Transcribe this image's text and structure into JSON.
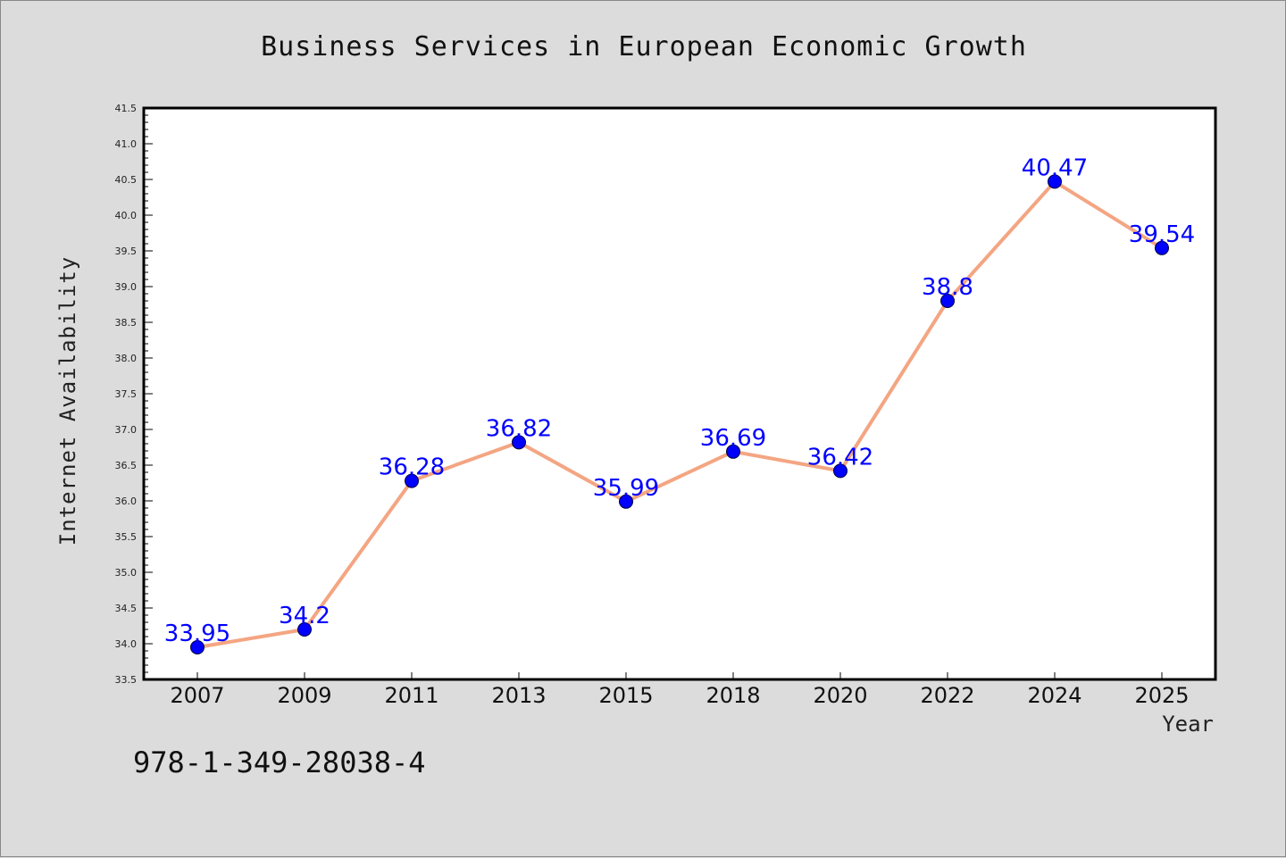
{
  "chart_data": {
    "type": "line",
    "title": "Business Services in European Economic Growth",
    "xlabel": "Year",
    "ylabel": "Internet Availability",
    "categories": [
      "2007",
      "2009",
      "2011",
      "2013",
      "2015",
      "2018",
      "2020",
      "2022",
      "2024",
      "2025"
    ],
    "series": [
      {
        "values": [
          33.95,
          34.2,
          36.28,
          36.82,
          35.99,
          36.69,
          36.42,
          38.8,
          40.47,
          39.54
        ],
        "data_labels": [
          "33.95",
          "34.2",
          "36.28",
          "36.82",
          "35.99",
          "36.69",
          "36.42",
          "38.8",
          "40.47",
          "39.54"
        ]
      }
    ],
    "ylim": [
      33.5,
      41.5
    ],
    "yticks": [
      "33.5",
      "34.0",
      "34.5",
      "35.0",
      "35.5",
      "36.0",
      "36.5",
      "37.0",
      "37.5",
      "38.0",
      "38.5",
      "39.0",
      "39.5",
      "40.0",
      "40.5",
      "41.0",
      "41.5"
    ],
    "grid": false,
    "legend": "none",
    "colors": {
      "line": "#f4a582",
      "marker": "#0000ff",
      "data_label": "#0000ff",
      "background": "#dcdcdc",
      "plot_area": "#ffffff"
    }
  },
  "footer": {
    "code": "978-1-349-28038-4"
  }
}
